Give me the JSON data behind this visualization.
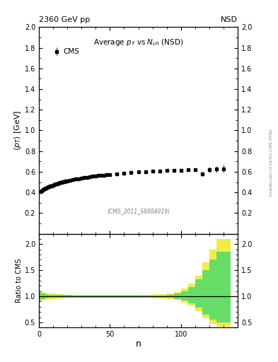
{
  "title_top_left": "2360 GeV pp",
  "title_top_right": "NSD",
  "watermark": "(CMS_2011_S8884919)",
  "side_text": "mcplots.cern.ch [arXiv:1306.3436]",
  "cms_label": "CMS",
  "ylim_main": [
    0.0,
    2.0
  ],
  "xlim": [
    0,
    140
  ],
  "cms_data_x": [
    1,
    2,
    3,
    4,
    5,
    6,
    7,
    8,
    9,
    10,
    11,
    12,
    13,
    14,
    15,
    16,
    17,
    18,
    19,
    20,
    22,
    24,
    26,
    28,
    30,
    32,
    34,
    36,
    38,
    40,
    42,
    44,
    46,
    48,
    50,
    55,
    60,
    65,
    70,
    75,
    80,
    85,
    90,
    95,
    100,
    105,
    110,
    115,
    120,
    125,
    130
  ],
  "cms_data_y": [
    0.405,
    0.415,
    0.425,
    0.433,
    0.441,
    0.447,
    0.454,
    0.46,
    0.465,
    0.471,
    0.476,
    0.481,
    0.486,
    0.49,
    0.494,
    0.498,
    0.502,
    0.505,
    0.508,
    0.511,
    0.517,
    0.522,
    0.528,
    0.533,
    0.538,
    0.542,
    0.547,
    0.551,
    0.555,
    0.559,
    0.562,
    0.565,
    0.568,
    0.571,
    0.574,
    0.581,
    0.587,
    0.592,
    0.597,
    0.601,
    0.605,
    0.608,
    0.611,
    0.613,
    0.615,
    0.617,
    0.619,
    0.58,
    0.62,
    0.625,
    0.63
  ],
  "cms_err_y": [
    0.01,
    0.008,
    0.007,
    0.006,
    0.006,
    0.005,
    0.005,
    0.005,
    0.005,
    0.005,
    0.005,
    0.005,
    0.005,
    0.005,
    0.005,
    0.005,
    0.005,
    0.005,
    0.005,
    0.005,
    0.005,
    0.005,
    0.005,
    0.005,
    0.005,
    0.005,
    0.005,
    0.005,
    0.005,
    0.005,
    0.005,
    0.005,
    0.005,
    0.005,
    0.005,
    0.005,
    0.005,
    0.005,
    0.006,
    0.007,
    0.008,
    0.009,
    0.01,
    0.011,
    0.012,
    0.013,
    0.015,
    0.02,
    0.025,
    0.03,
    0.04
  ],
  "ratio_bins_left": [
    0,
    2,
    4,
    6,
    8,
    10,
    12,
    14,
    16,
    18,
    20,
    24,
    28,
    32,
    36,
    40,
    45,
    50,
    55,
    60,
    65,
    70,
    75,
    80,
    85,
    90,
    95,
    100,
    105,
    110,
    115,
    120,
    125
  ],
  "ratio_bins_right": [
    2,
    4,
    6,
    8,
    10,
    12,
    14,
    16,
    18,
    20,
    24,
    28,
    32,
    36,
    40,
    45,
    50,
    55,
    60,
    65,
    70,
    75,
    80,
    85,
    90,
    95,
    100,
    105,
    110,
    115,
    120,
    125,
    135
  ],
  "ratio_yellow_lo": [
    0.9,
    0.92,
    0.93,
    0.94,
    0.95,
    0.95,
    0.96,
    0.96,
    0.96,
    0.97,
    0.97,
    0.97,
    0.97,
    0.97,
    0.97,
    0.97,
    0.97,
    0.97,
    0.97,
    0.97,
    0.97,
    0.97,
    0.97,
    0.96,
    0.96,
    0.95,
    0.93,
    0.88,
    0.82,
    0.72,
    0.58,
    0.47,
    0.42
  ],
  "ratio_yellow_hi": [
    1.1,
    1.08,
    1.07,
    1.06,
    1.05,
    1.05,
    1.04,
    1.04,
    1.04,
    1.03,
    1.03,
    1.03,
    1.03,
    1.03,
    1.03,
    1.03,
    1.03,
    1.03,
    1.03,
    1.03,
    1.03,
    1.03,
    1.03,
    1.04,
    1.04,
    1.05,
    1.08,
    1.15,
    1.25,
    1.4,
    1.65,
    1.9,
    2.1
  ],
  "ratio_green_lo": [
    0.93,
    0.95,
    0.96,
    0.97,
    0.97,
    0.97,
    0.97,
    0.97,
    0.97,
    0.97,
    0.97,
    0.98,
    0.98,
    0.98,
    0.98,
    0.98,
    0.98,
    0.98,
    0.98,
    0.98,
    0.98,
    0.98,
    0.98,
    0.98,
    0.98,
    0.97,
    0.95,
    0.92,
    0.87,
    0.78,
    0.65,
    0.55,
    0.5
  ],
  "ratio_green_hi": [
    1.07,
    1.05,
    1.04,
    1.03,
    1.03,
    1.03,
    1.03,
    1.03,
    1.03,
    1.03,
    1.03,
    1.02,
    1.02,
    1.02,
    1.02,
    1.02,
    1.02,
    1.02,
    1.02,
    1.02,
    1.02,
    1.02,
    1.02,
    1.02,
    1.02,
    1.03,
    1.05,
    1.1,
    1.18,
    1.32,
    1.5,
    1.7,
    1.85
  ],
  "color_green": "#66dd66",
  "color_yellow": "#eeee44",
  "background_color": "#ffffff",
  "marker_color": "#000000",
  "marker_size": 3.5,
  "yticks_main": [
    0.2,
    0.4,
    0.6,
    0.8,
    1.0,
    1.2,
    1.4,
    1.6,
    1.8,
    2.0
  ],
  "yticks_ratio": [
    0.5,
    1.0,
    1.5,
    2.0
  ],
  "xticks": [
    0,
    50,
    100
  ]
}
